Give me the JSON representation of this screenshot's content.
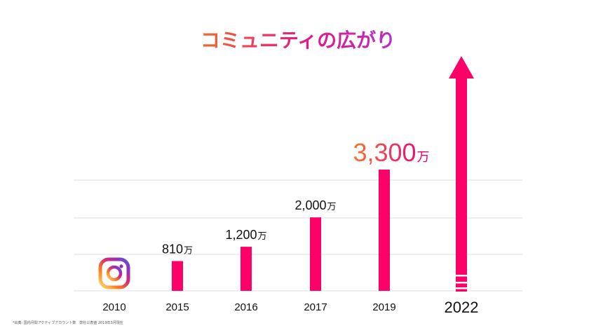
{
  "chart_data": {
    "type": "bar",
    "title": "コミュニティの広がり",
    "categories": [
      "2010",
      "2015",
      "2016",
      "2017",
      "2019",
      "2022"
    ],
    "values": [
      null,
      810,
      1200,
      2000,
      3300,
      null
    ],
    "value_labels": [
      "",
      "810",
      "1,200",
      "2,000",
      "3,300",
      ""
    ],
    "unit": "万",
    "highlight_category": "2019",
    "first_category_marker": "instagram-logo-icon",
    "last_category_marker": "growth-arrow-icon",
    "ylim": [
      0,
      3300
    ],
    "grid": true,
    "xlabel": "",
    "ylabel": "",
    "footnote": "*出典: 国内月間アクティブアカウント数　弊社公表値 2019年3月現在",
    "colors": {
      "bar": "#ff0069",
      "title_gradient": [
        "#f26a2a",
        "#e01a8a",
        "#b62fc6"
      ],
      "highlight_gradient": [
        "#f07a2d",
        "#e6007e"
      ],
      "grid": "#dddddd"
    }
  }
}
